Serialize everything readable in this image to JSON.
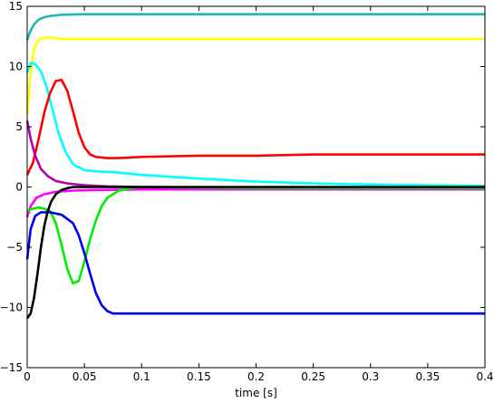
{
  "chart_data": {
    "type": "line",
    "title": "",
    "xlabel": "time [s]",
    "ylabel": "",
    "xlim": [
      0,
      0.4
    ],
    "ylim": [
      -15,
      15
    ],
    "grid": false,
    "legend": "none",
    "xticks": [
      0,
      0.05,
      0.1,
      0.15,
      0.2,
      0.25,
      0.3,
      0.35,
      0.4
    ],
    "xtick_labels": [
      "0",
      "0.05",
      "0.1",
      "0.15",
      "0.2",
      "0.25",
      "0.3",
      "0.35",
      "0.4"
    ],
    "yticks": [
      -15,
      -10,
      -5,
      0,
      5,
      10,
      15
    ],
    "ytick_labels": [
      "−15",
      "−10",
      "−5",
      "0",
      "5",
      "10",
      "15"
    ],
    "series": [
      {
        "color": "#1fb9b4",
        "x": [
          0,
          0.003,
          0.006,
          0.01,
          0.015,
          0.02,
          0.03,
          0.05,
          0.1,
          0.2,
          0.3,
          0.4
        ],
        "y": [
          12.2,
          13.0,
          13.5,
          13.9,
          14.1,
          14.2,
          14.3,
          14.35,
          14.35,
          14.35,
          14.35,
          14.35
        ]
      },
      {
        "color": "#ffff00",
        "x": [
          0,
          0.003,
          0.006,
          0.01,
          0.015,
          0.02,
          0.03,
          0.05,
          0.1,
          0.2,
          0.3,
          0.4
        ],
        "y": [
          6.0,
          9.5,
          11.5,
          12.2,
          12.4,
          12.4,
          12.3,
          12.3,
          12.3,
          12.3,
          12.3,
          12.3
        ]
      },
      {
        "color": "#00ffff",
        "x": [
          0,
          0.003,
          0.007,
          0.012,
          0.017,
          0.022,
          0.027,
          0.033,
          0.04,
          0.05,
          0.06,
          0.08,
          0.1,
          0.15,
          0.2,
          0.25,
          0.3,
          0.35,
          0.4
        ],
        "y": [
          9.5,
          10.3,
          10.2,
          9.6,
          8.3,
          6.5,
          4.6,
          3.0,
          1.9,
          1.4,
          1.3,
          1.2,
          1.0,
          0.7,
          0.45,
          0.3,
          0.2,
          0.15,
          0.1
        ]
      },
      {
        "color": "#ff0000",
        "x": [
          0,
          0.005,
          0.01,
          0.015,
          0.02,
          0.025,
          0.03,
          0.035,
          0.04,
          0.045,
          0.05,
          0.055,
          0.06,
          0.07,
          0.08,
          0.1,
          0.15,
          0.2,
          0.25,
          0.3,
          0.35,
          0.4
        ],
        "y": [
          1.0,
          2.0,
          4.0,
          6.2,
          7.8,
          8.8,
          8.9,
          8.0,
          6.3,
          4.5,
          3.3,
          2.7,
          2.5,
          2.4,
          2.4,
          2.5,
          2.6,
          2.6,
          2.7,
          2.7,
          2.7,
          2.7
        ]
      },
      {
        "color": "#b000b0",
        "x": [
          0,
          0.003,
          0.007,
          0.012,
          0.018,
          0.025,
          0.035,
          0.05,
          0.07,
          0.1,
          0.2,
          0.3,
          0.4
        ],
        "y": [
          5.5,
          4.0,
          2.6,
          1.5,
          0.9,
          0.5,
          0.3,
          0.15,
          0.05,
          0.0,
          -0.05,
          -0.05,
          -0.05
        ]
      },
      {
        "color": "#ff00ff",
        "x": [
          0,
          0.003,
          0.008,
          0.015,
          0.025,
          0.04,
          0.06,
          0.1,
          0.2,
          0.3,
          0.4
        ],
        "y": [
          -2.5,
          -1.6,
          -0.9,
          -0.6,
          -0.4,
          -0.3,
          -0.25,
          -0.2,
          -0.2,
          -0.2,
          -0.2
        ]
      },
      {
        "color": "#00ee00",
        "x": [
          0,
          0.005,
          0.01,
          0.015,
          0.02,
          0.025,
          0.03,
          0.035,
          0.04,
          0.045,
          0.05,
          0.055,
          0.06,
          0.065,
          0.07,
          0.08,
          0.09,
          0.1,
          0.2,
          0.3,
          0.4
        ],
        "y": [
          -2.0,
          -1.8,
          -1.7,
          -1.8,
          -2.0,
          -3.0,
          -4.8,
          -6.8,
          -8.0,
          -7.8,
          -6.2,
          -4.3,
          -2.8,
          -1.6,
          -0.9,
          -0.3,
          -0.1,
          0.0,
          -0.1,
          -0.1,
          -0.1
        ]
      },
      {
        "color": "#0000ee",
        "x": [
          0,
          0.003,
          0.007,
          0.012,
          0.02,
          0.03,
          0.04,
          0.045,
          0.05,
          0.055,
          0.06,
          0.065,
          0.07,
          0.075,
          0.08,
          0.09,
          0.1,
          0.2,
          0.3,
          0.4
        ],
        "y": [
          -6.0,
          -3.5,
          -2.4,
          -2.1,
          -2.1,
          -2.3,
          -3.0,
          -4.0,
          -5.5,
          -7.2,
          -8.8,
          -9.8,
          -10.3,
          -10.5,
          -10.5,
          -10.5,
          -10.5,
          -10.5,
          -10.5,
          -10.5
        ]
      },
      {
        "color": "#000000",
        "x": [
          0,
          0.003,
          0.006,
          0.009,
          0.012,
          0.015,
          0.018,
          0.021,
          0.025,
          0.03,
          0.035,
          0.04,
          0.05,
          0.06,
          0.08,
          0.1,
          0.2,
          0.3,
          0.4
        ],
        "y": [
          -10.9,
          -10.5,
          -9.2,
          -7.2,
          -5.0,
          -3.2,
          -2.0,
          -1.2,
          -0.6,
          -0.25,
          -0.1,
          0.0,
          0.0,
          0.0,
          0.0,
          0.0,
          0.0,
          0.0,
          0.0
        ]
      }
    ]
  }
}
